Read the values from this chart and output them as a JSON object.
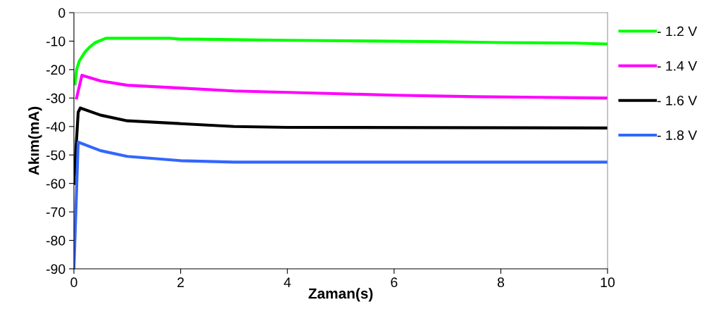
{
  "chart_data": {
    "type": "line",
    "xlabel": "Zaman(s)",
    "ylabel": "Akım(mA)",
    "xlim": [
      0,
      10
    ],
    "xticks": [
      0,
      2,
      4,
      6,
      8,
      10
    ],
    "ylim": [
      -90,
      0
    ],
    "yticks": [
      -90,
      -80,
      -70,
      -60,
      -50,
      -40,
      -30,
      -20,
      -10,
      0
    ],
    "grid": false,
    "legend": "right",
    "marker": "none",
    "line_style": "solid",
    "series": [
      {
        "name": "- 1.2 V",
        "color": "#00ff00",
        "x": [
          0.02,
          0.05,
          0.1,
          0.2,
          0.3,
          0.4,
          0.6,
          1.8,
          2.0,
          2.3,
          3,
          4,
          5.7,
          7,
          8,
          9.4,
          10
        ],
        "values": [
          -25,
          -20,
          -17,
          -14,
          -12,
          -10.5,
          -9,
          -9,
          -9.3,
          -9.3,
          -9.5,
          -9.7,
          -10,
          -10.2,
          -10.5,
          -10.7,
          -11
        ]
      },
      {
        "name": "- 1.4 V",
        "color": "#ff00ff",
        "x": [
          0.05,
          0.15,
          0.5,
          1,
          2,
          3,
          4,
          5,
          6,
          7.5,
          10
        ],
        "values": [
          -30,
          -22,
          -24,
          -25.5,
          -26.5,
          -27.5,
          -28,
          -28.5,
          -29,
          -29.5,
          -30
        ]
      },
      {
        "name": "- 1.6 V",
        "color": "#000000",
        "x": [
          0,
          0.08,
          0.12,
          0.5,
          1,
          2,
          3,
          4,
          10
        ],
        "values": [
          -60,
          -35,
          -33.5,
          -36,
          -38,
          -39,
          -40,
          -40.3,
          -40.5
        ]
      },
      {
        "name": "- 1.8 V",
        "color": "#3366ff",
        "x": [
          0,
          0.08,
          0.5,
          1,
          2,
          3,
          10
        ],
        "values": [
          -90,
          -45.5,
          -48.5,
          -50.5,
          -52,
          -52.5,
          -52.5
        ]
      }
    ]
  }
}
